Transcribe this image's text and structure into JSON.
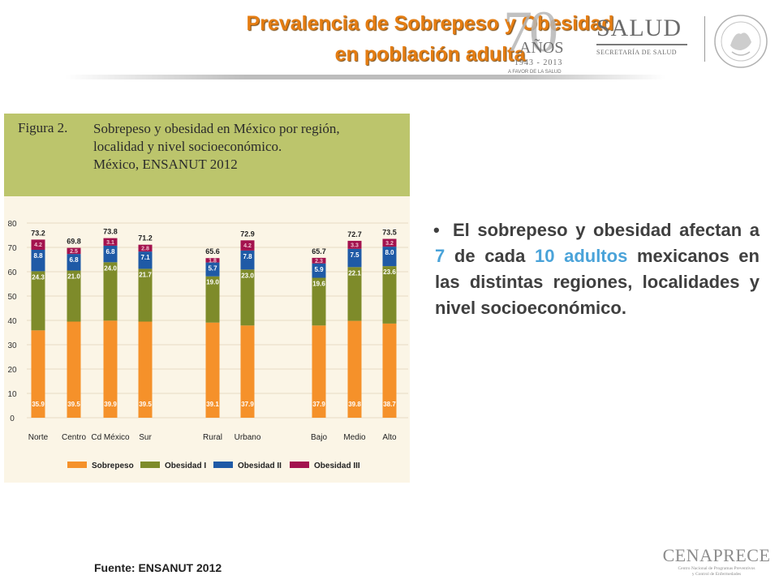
{
  "header": {
    "title_line1": "Prevalencia de Sobrepeso y Obesidad",
    "title_line2": "en población adulta"
  },
  "logo_70": {
    "number": "70",
    "anos": "AÑOS",
    "years": "1943 - 2013",
    "slogan": "A FAVOR DE LA SALUD"
  },
  "logo_salud": {
    "word": "SALUD",
    "sub": "SECRETARÍA DE SALUD"
  },
  "figure": {
    "label": "Figura 2.",
    "caption_line1": "Sobrepeso y obesidad en México por región,",
    "caption_line2": "localidad y nivel socioeconómico.",
    "caption_line3": "México, ENSANUT 2012"
  },
  "chart_data": {
    "type": "bar",
    "stacked": true,
    "categories": [
      "Norte",
      "Centro",
      "Cd México",
      "Sur",
      "Rural",
      "Urbano",
      "Bajo",
      "Medio",
      "Alto"
    ],
    "groups": [
      [
        "Norte",
        "Centro",
        "Cd México",
        "Sur"
      ],
      [
        "Rural",
        "Urbano"
      ],
      [
        "Bajo",
        "Medio",
        "Alto"
      ]
    ],
    "series": [
      {
        "name": "Sobrepeso",
        "values": [
          35.9,
          39.5,
          39.9,
          39.5,
          39.1,
          37.9,
          37.9,
          39.8,
          38.7
        ],
        "labels": [
          "35.9",
          "39.5",
          "39.9",
          "39.5",
          "39.1",
          "37.9",
          "37.9",
          "39.8",
          "38.7"
        ],
        "color": "#f5912a"
      },
      {
        "name": "Obesidad I",
        "values": [
          24.3,
          21.0,
          24.0,
          21.7,
          19.0,
          23.0,
          19.6,
          22.1,
          23.6
        ],
        "labels": [
          "24.3",
          "21.0",
          "24.0",
          "21.7",
          "19.0",
          "23.0",
          "19.6",
          "22.1",
          "23.6"
        ],
        "color": "#7e8b2a"
      },
      {
        "name": "Obesidad II",
        "values": [
          8.8,
          6.8,
          6.8,
          7.1,
          5.7,
          7.8,
          5.9,
          7.5,
          8.0
        ],
        "labels": [
          "8.8",
          "6.8",
          "6.8",
          "7.1",
          "5.7",
          "7.8",
          "5.9",
          "7.5",
          "8.0"
        ],
        "color": "#1f5aa6"
      },
      {
        "name": "Obesidad III",
        "values": [
          4.2,
          2.5,
          3.1,
          2.8,
          1.8,
          4.2,
          2.3,
          3.3,
          3.2
        ],
        "labels": [
          "4.2",
          "2.5",
          "3.1",
          "2.8",
          "1.8",
          "4.2",
          "2.3",
          "3.3",
          "3.2"
        ],
        "color": "#a3124e"
      }
    ],
    "totals": [
      73.2,
      69.8,
      73.8,
      71.2,
      65.6,
      72.9,
      65.7,
      72.7,
      73.5
    ],
    "total_labels": [
      "73.2",
      "69.8",
      "73.8",
      "71.2",
      "65.6",
      "72.9",
      "65.7",
      "72.7",
      "73.5"
    ],
    "ylim": [
      0,
      80
    ],
    "yticks": [
      0,
      10,
      20,
      30,
      40,
      50,
      60,
      70,
      80
    ],
    "ytick_labels": [
      "0",
      "10",
      "20",
      "30",
      "40",
      "50",
      "60",
      "70",
      "80"
    ],
    "grid": true,
    "legend_position": "bottom"
  },
  "bullet": {
    "part1": "El sobrepeso y obesidad afectan a",
    "num1": "7",
    "part2": "de cada",
    "num2": "10 adultos",
    "part3": "mexicanos en las distintas regiones, localidades y nivel socioeconómico."
  },
  "footer": {
    "source": "Fuente: ENSANUT 2012",
    "logo_name": "CENAPRECE",
    "logo_sub1": "Centro Nacional de Programas Preventivos",
    "logo_sub2": "y Control de Enfermedades"
  },
  "colors": {
    "title": "#e57d12",
    "highlight": "#4aa3d9",
    "figure_header": "#bcc56c",
    "figure_background": "#fbf5e6"
  }
}
